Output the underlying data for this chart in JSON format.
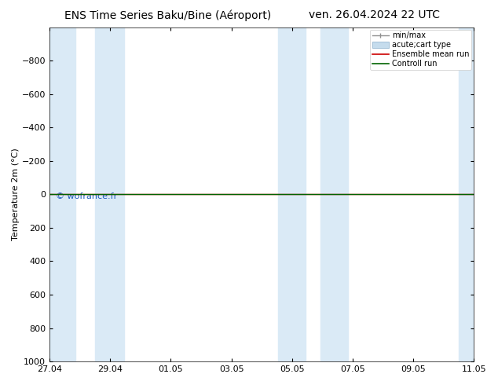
{
  "title_left": "ENS Time Series Baku/Bine (Aéroport)",
  "title_right": "ven. 26.04.2024 22 UTC",
  "ylabel": "Temperature 2m (°C)",
  "ylim_top": -1000,
  "ylim_bottom": 1000,
  "yticks": [
    -800,
    -600,
    -400,
    -200,
    0,
    200,
    400,
    600,
    800,
    1000
  ],
  "xtick_labels": [
    "27.04",
    "29.04",
    "01.05",
    "03.05",
    "05.05",
    "07.05",
    "09.05",
    "11.05"
  ],
  "xtick_positions": [
    0,
    2,
    4,
    6,
    8,
    10,
    12,
    14
  ],
  "background_color": "#ffffff",
  "plot_bg_color": "#ffffff",
  "shaded_color": "#daeaf6",
  "shaded_pairs": [
    [
      0,
      1.0
    ],
    [
      1.5,
      2.5
    ],
    [
      7.5,
      8.5
    ],
    [
      9.0,
      10.0
    ],
    [
      13.5,
      14.0
    ]
  ],
  "control_run_color": "#006400",
  "ensemble_mean_color": "#cc0000",
  "minmax_color": "#909090",
  "watermark_text": "© wofrance.fr",
  "watermark_color": "#1e5cbf",
  "legend_labels": [
    "min/max",
    "acute;cart type",
    "Ensemble mean run",
    "Controll run"
  ],
  "legend_colors": [
    "#909090",
    "#b8d4e8",
    "#cc0000",
    "#006400"
  ],
  "font_size_title": 10,
  "font_size_axis": 8,
  "font_size_ticks": 8,
  "font_size_legend": 7,
  "font_size_watermark": 8,
  "days_total": 14,
  "shaded_bands": [
    [
      0,
      0.9
    ],
    [
      1.55,
      2.45
    ],
    [
      7.6,
      8.4
    ],
    [
      9.05,
      9.95
    ],
    [
      13.5,
      14.0
    ]
  ]
}
